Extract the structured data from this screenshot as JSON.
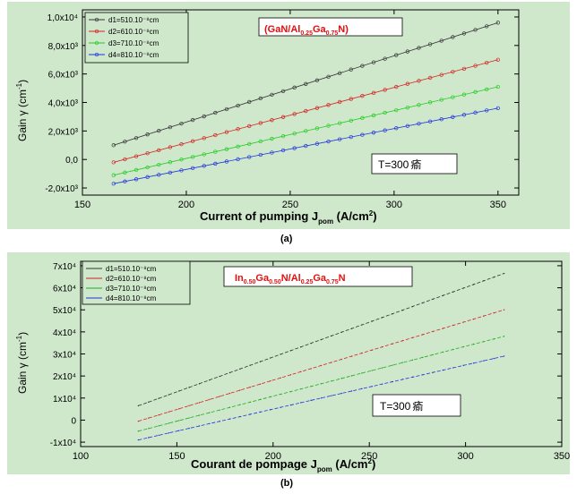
{
  "chart_data": [
    {
      "type": "scatter",
      "panel_label": "(a)",
      "title": "(GaN/Al",
      "title_parts": [
        "(GaN/Al",
        "0.25",
        "Ga",
        "0.75",
        "N)"
      ],
      "xlabel_parts": [
        "Current of pumping J",
        "pom",
        " (A/cm",
        "2",
        ")"
      ],
      "ylabel_parts": [
        "Gain γ (cm",
        "-1",
        ")"
      ],
      "annotation": "T=300",
      "annotation_unit": "瘉",
      "x": [
        165,
        350
      ],
      "xlim": [
        150,
        360
      ],
      "ylim": [
        -2500,
        10500
      ],
      "xticks": [
        "150",
        "200",
        "250",
        "300",
        "350"
      ],
      "xtick_values": [
        150,
        200,
        250,
        300,
        350
      ],
      "yticks": [
        "-2,0x10³",
        "0,0",
        "2,0x10³",
        "4,0x10³",
        "6,0x10³",
        "8,0x10³",
        "1,0x10⁴"
      ],
      "ytick_values": [
        -2000,
        0,
        2000,
        4000,
        6000,
        8000,
        10000
      ],
      "grid": false,
      "legend_position": "top-left",
      "marker": "circle",
      "series": [
        {
          "name": "d1=510.10⁻⁸cm",
          "color": "#333333",
          "x": [
            165,
            350
          ],
          "y": [
            1000,
            9600
          ]
        },
        {
          "name": "d2=610.10⁻⁸cm",
          "color": "#d42020",
          "x": [
            165,
            350
          ],
          "y": [
            -200,
            7000
          ]
        },
        {
          "name": "d3=710.10⁻⁸cm",
          "color": "#22cc22",
          "x": [
            165,
            350
          ],
          "y": [
            -1100,
            5100
          ]
        },
        {
          "name": "d4=810.10⁻⁸cm",
          "color": "#2233dd",
          "x": [
            165,
            350
          ],
          "y": [
            -1700,
            3600
          ]
        }
      ]
    },
    {
      "type": "line",
      "panel_label": "(b)",
      "title": "In",
      "title_parts": [
        "In",
        "0.50",
        "Ga",
        "0.50",
        "N/Al",
        "0.25",
        "Ga",
        "0.75",
        "N"
      ],
      "xlabel_parts": [
        "Courant de pompage J",
        "pom",
        " (A/cm",
        "2",
        ")"
      ],
      "ylabel_parts": [
        "Gain γ (cm",
        "-1",
        ")"
      ],
      "annotation": "T=300",
      "annotation_unit": "瘉",
      "x": [
        130,
        320
      ],
      "xlim": [
        100,
        350
      ],
      "ylim": [
        -12000,
        72000
      ],
      "xticks": [
        "100",
        "150",
        "200",
        "250",
        "300",
        "350"
      ],
      "xtick_values": [
        100,
        150,
        200,
        250,
        300,
        350
      ],
      "yticks": [
        "-1x10⁴",
        "0",
        "1x10⁴",
        "2x10⁴",
        "3x10⁴",
        "4x10⁴",
        "5x10⁴",
        "6x10⁴",
        "7x10⁴"
      ],
      "ytick_values": [
        -10000,
        0,
        10000,
        20000,
        30000,
        40000,
        50000,
        60000,
        70000
      ],
      "grid": false,
      "legend_position": "top-left",
      "series": [
        {
          "name": "d1=510.10⁻⁸cm",
          "color": "#333333",
          "x": [
            130,
            320
          ],
          "y": [
            6500,
            66500
          ]
        },
        {
          "name": "d2=610.10⁻⁸cm",
          "color": "#d42020",
          "x": [
            130,
            320
          ],
          "y": [
            -500,
            50000
          ]
        },
        {
          "name": "d3=710.10⁻⁸cm",
          "color": "#22aa22",
          "x": [
            130,
            320
          ],
          "y": [
            -5000,
            38000
          ]
        },
        {
          "name": "d4=810.10⁻⁸cm",
          "color": "#2233dd",
          "x": [
            130,
            320
          ],
          "y": [
            -9000,
            29000
          ]
        }
      ]
    }
  ]
}
